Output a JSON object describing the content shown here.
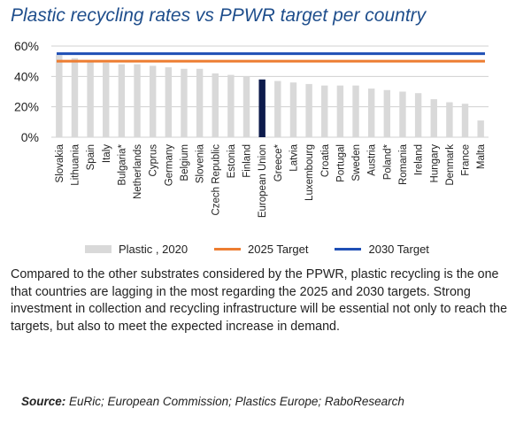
{
  "title": "Plastic recycling rates vs PPWR target per country",
  "chart_data": {
    "type": "bar",
    "title": "Plastic recycling rates vs PPWR target per country",
    "categories": [
      "Slovakia",
      "Lithuania",
      "Spain",
      "Italy",
      "Bulgaria*",
      "Netherlands",
      "Cyprus",
      "Germany",
      "Belgium",
      "Slovenia",
      "Czech Republic",
      "Estonia",
      "Finland",
      "European Union",
      "Greece*",
      "Latvia",
      "Luxembourg",
      "Croatia",
      "Portugal",
      "Sweden",
      "Austria",
      "Poland*",
      "Romania",
      "Ireland",
      "Hungary",
      "Denmark",
      "France",
      "Malta"
    ],
    "series": [
      {
        "name": "Plastic , 2020",
        "values": [
          54,
          52,
          50,
          49,
          48,
          48,
          47,
          46,
          45,
          45,
          42,
          41,
          40,
          38,
          37,
          36,
          35,
          34,
          34,
          34,
          32,
          31,
          30,
          29,
          25,
          23,
          22,
          11
        ]
      }
    ],
    "highlight": {
      "category": "European Union",
      "color": "#0d1b4c"
    },
    "bar_color": "#d9d9d9",
    "targets": [
      {
        "name": "2025 Target",
        "value": 50,
        "color": "#ed7d31"
      },
      {
        "name": "2030 Target",
        "value": 55,
        "color": "#1f4fb5"
      }
    ],
    "ylim": [
      0,
      60
    ],
    "yticks": [
      "0%",
      "20%",
      "40%",
      "60%"
    ],
    "ytick_values": [
      0,
      20,
      40,
      60
    ],
    "grid": true,
    "legend_position": "bottom",
    "xlabel": "",
    "ylabel": ""
  },
  "legend": [
    {
      "label": "Plastic , 2020",
      "kind": "bar",
      "color": "#d9d9d9"
    },
    {
      "label": "2025 Target",
      "kind": "line",
      "color": "#ed7d31"
    },
    {
      "label": "2030 Target",
      "kind": "line",
      "color": "#1f4fb5"
    }
  ],
  "description": "Compared to the other substrates considered by the PPWR, plastic recycling is the one that countries are lagging in the most regarding the 2025 and 2030 targets. Strong investment in collection and recycling infrastructure will be essential not only to reach the targets, but also to meet the expected increase in demand.",
  "source": {
    "label": "Source:",
    "text": " EuRic; European Commission; Plastics Europe; RaboResearch"
  }
}
